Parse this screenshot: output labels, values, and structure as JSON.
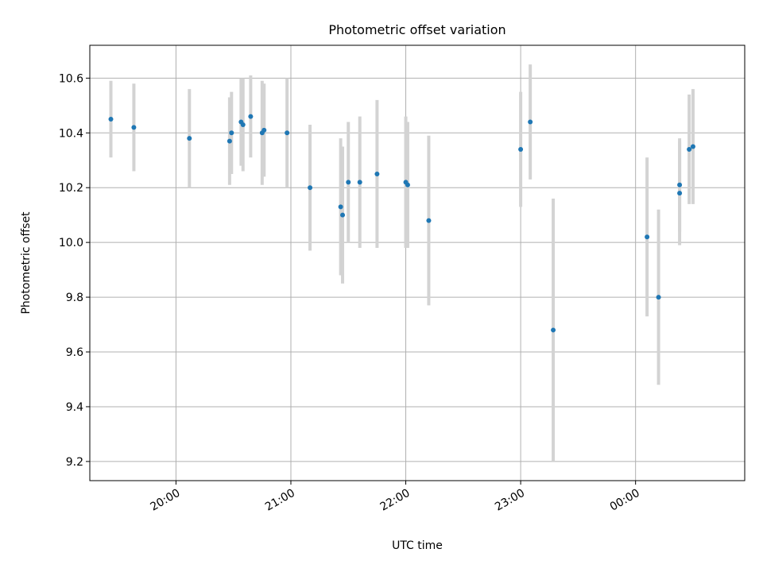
{
  "chart_data": {
    "type": "scatter",
    "title": "Photometric offset variation",
    "xlabel": "UTC time",
    "ylabel": "Photometric offset",
    "grid": true,
    "x_ticks": [
      "20:00",
      "21:00",
      "22:00",
      "23:00",
      "00:00"
    ],
    "y_ticks": [
      "9.2",
      "9.4",
      "9.6",
      "9.8",
      "10.0",
      "10.2",
      "10.4",
      "10.6"
    ],
    "xlim": [
      "19:15",
      "00:57"
    ],
    "ylim": [
      9.13,
      10.72
    ],
    "colors": {
      "points": "#1f77b4",
      "errorbars": "#d3d3d3",
      "grid": "#b0b0b0"
    },
    "points": [
      {
        "x": "19:26",
        "y": 10.45,
        "err": 0.14
      },
      {
        "x": "19:38",
        "y": 10.42,
        "err": 0.16
      },
      {
        "x": "20:07",
        "y": 10.38,
        "err": 0.18
      },
      {
        "x": "20:28",
        "y": 10.37,
        "err": 0.16
      },
      {
        "x": "20:29",
        "y": 10.4,
        "err": 0.15
      },
      {
        "x": "20:34",
        "y": 10.44,
        "err": 0.16
      },
      {
        "x": "20:35",
        "y": 10.43,
        "err": 0.17
      },
      {
        "x": "20:39",
        "y": 10.46,
        "err": 0.15
      },
      {
        "x": "20:45",
        "y": 10.4,
        "err": 0.19
      },
      {
        "x": "20:46",
        "y": 10.41,
        "err": 0.17
      },
      {
        "x": "20:58",
        "y": 10.4,
        "err": 0.2
      },
      {
        "x": "21:10",
        "y": 10.2,
        "err": 0.23
      },
      {
        "x": "21:26",
        "y": 10.13,
        "err": 0.25
      },
      {
        "x": "21:27",
        "y": 10.1,
        "err": 0.25
      },
      {
        "x": "21:30",
        "y": 10.22,
        "err": 0.22
      },
      {
        "x": "21:36",
        "y": 10.22,
        "err": 0.24
      },
      {
        "x": "21:45",
        "y": 10.25,
        "err": 0.27
      },
      {
        "x": "22:00",
        "y": 10.22,
        "err": 0.24
      },
      {
        "x": "22:01",
        "y": 10.21,
        "err": 0.23
      },
      {
        "x": "22:12",
        "y": 10.08,
        "err": 0.31
      },
      {
        "x": "23:00",
        "y": 10.34,
        "err": 0.21
      },
      {
        "x": "23:05",
        "y": 10.44,
        "err": 0.21
      },
      {
        "x": "23:17",
        "y": 9.68,
        "err": 0.48
      },
      {
        "x": "00:06",
        "y": 10.02,
        "err": 0.29
      },
      {
        "x": "00:12",
        "y": 9.8,
        "err": 0.32
      },
      {
        "x": "00:23",
        "y": 10.18,
        "err": 0.19
      },
      {
        "x": "00:23",
        "y": 10.21,
        "err": 0.17
      },
      {
        "x": "00:28",
        "y": 10.34,
        "err": 0.2
      },
      {
        "x": "00:30",
        "y": 10.35,
        "err": 0.21
      }
    ]
  }
}
